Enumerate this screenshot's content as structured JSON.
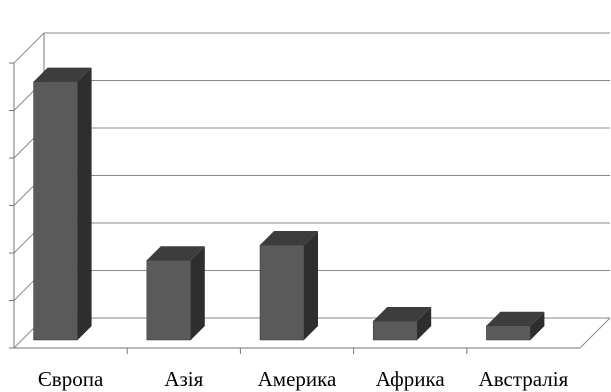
{
  "chart_data": {
    "type": "bar",
    "categories": [
      "Європа",
      "Азія",
      "Америка",
      "Африка",
      "Австралія"
    ],
    "values": [
      272,
      84,
      100,
      20,
      15
    ],
    "ylim": [
      0,
      300
    ],
    "grid": true,
    "legend": "none",
    "bar_style": "3d",
    "colors": {
      "bar_front": "#5a5a5a",
      "bar_side": "#2e2e2e",
      "bar_top": "#3d3d3d",
      "grid": "#8a8a8a",
      "axis": "#777777"
    }
  }
}
